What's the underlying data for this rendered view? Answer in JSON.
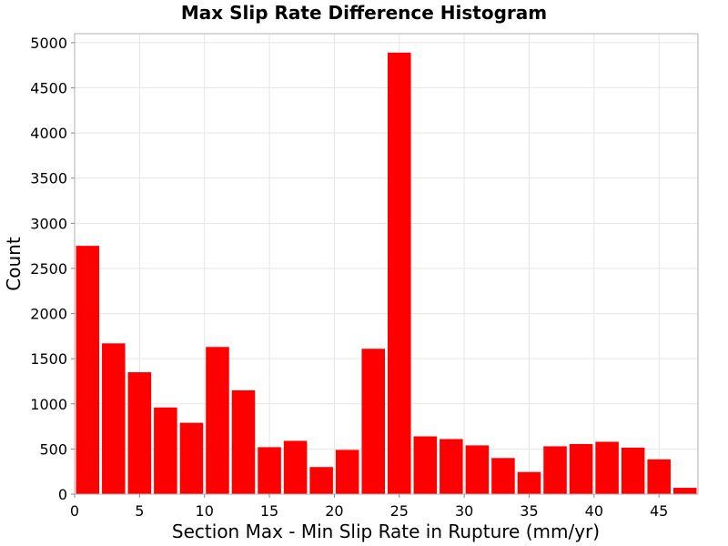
{
  "chart_data": {
    "type": "bar",
    "title": "Max Slip Rate Difference Histogram",
    "xlabel": "Section Max - Min Slip Rate in Rupture (mm/yr)",
    "ylabel": "Count",
    "xlim": [
      0,
      48
    ],
    "ylim": [
      0,
      5100
    ],
    "bin_width": 2,
    "x_ticks": [
      0,
      5,
      10,
      15,
      20,
      25,
      30,
      35,
      40,
      45
    ],
    "y_ticks": [
      0,
      500,
      1000,
      1500,
      2000,
      2500,
      3000,
      3500,
      4000,
      4500,
      5000
    ],
    "bins": [
      {
        "x": 1,
        "count": 2750
      },
      {
        "x": 3,
        "count": 1670
      },
      {
        "x": 5,
        "count": 1350
      },
      {
        "x": 7,
        "count": 960
      },
      {
        "x": 9,
        "count": 790
      },
      {
        "x": 11,
        "count": 1630
      },
      {
        "x": 13,
        "count": 1150
      },
      {
        "x": 15,
        "count": 520
      },
      {
        "x": 17,
        "count": 590
      },
      {
        "x": 19,
        "count": 300
      },
      {
        "x": 21,
        "count": 490
      },
      {
        "x": 23,
        "count": 1610
      },
      {
        "x": 25,
        "count": 4890
      },
      {
        "x": 27,
        "count": 640
      },
      {
        "x": 29,
        "count": 610
      },
      {
        "x": 31,
        "count": 540
      },
      {
        "x": 33,
        "count": 400
      },
      {
        "x": 35,
        "count": 245
      },
      {
        "x": 37,
        "count": 530
      },
      {
        "x": 39,
        "count": 555
      },
      {
        "x": 41,
        "count": 580
      },
      {
        "x": 43,
        "count": 515
      },
      {
        "x": 45,
        "count": 385
      },
      {
        "x": 47,
        "count": 70
      }
    ],
    "grid": true,
    "bar_color": "#ff0000",
    "grid_color": "#e6e6e6",
    "frame_color": "#b0b0b0"
  }
}
